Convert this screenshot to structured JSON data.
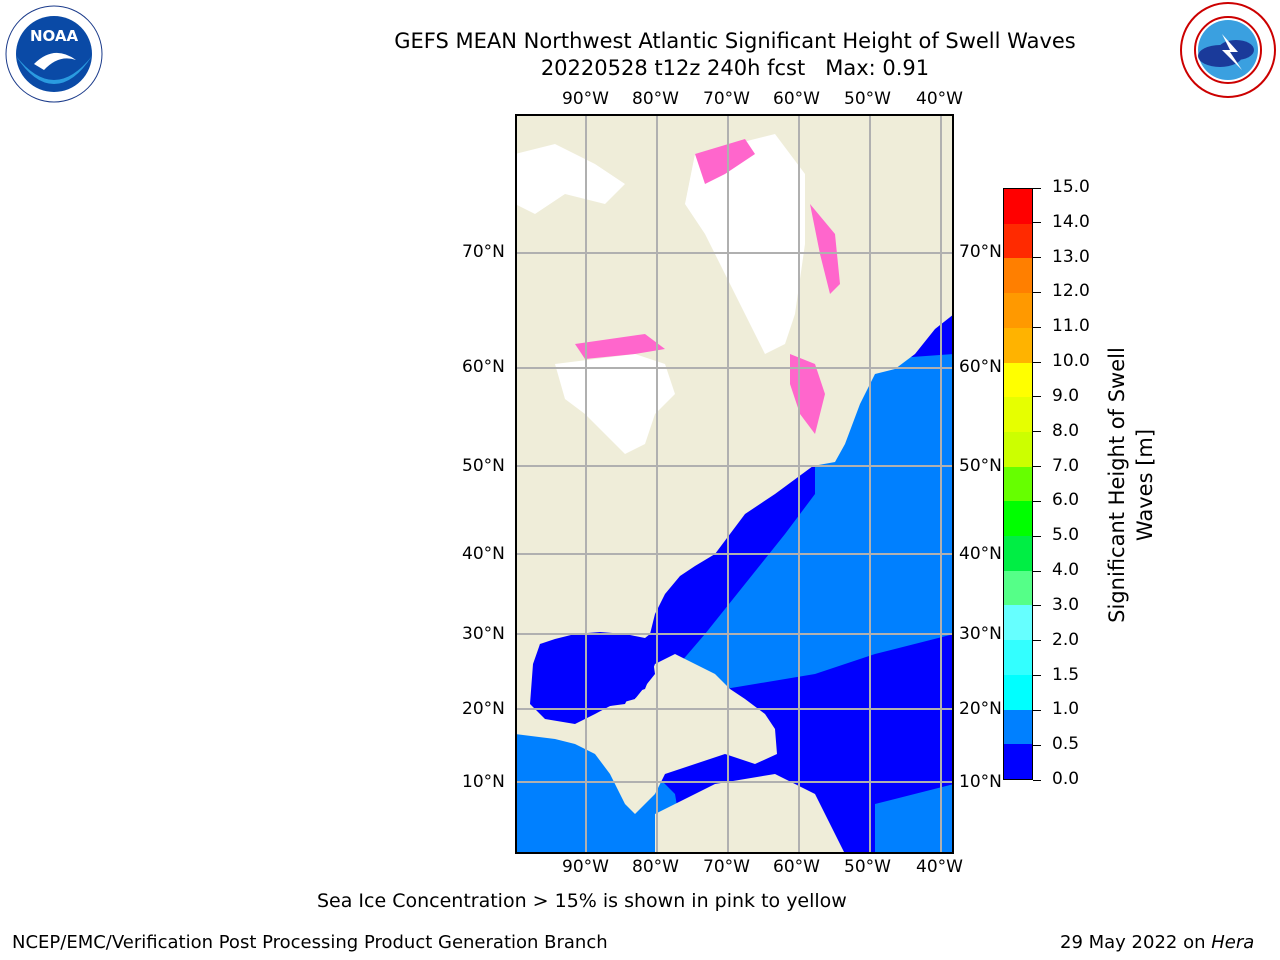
{
  "header": {
    "title_line1": "GEFS MEAN Northwest Atlantic Significant Height of Swell Waves",
    "title_line2": "20220528 t12z 240h fcst   Max: 0.91"
  },
  "logos": {
    "left_text": "NOAA",
    "left_ring_text": "NATIONAL OCEANIC AND ATMOSPHERIC ADMINISTRATION · U.S. DEPARTMENT OF COMMERCE",
    "right_ring_text": "NATIONAL WEATHER SERVICE"
  },
  "map": {
    "lon_labels": [
      "90°W",
      "80°W",
      "70°W",
      "60°W",
      "50°W",
      "40°W"
    ],
    "lat_labels": [
      "70°N",
      "60°N",
      "50°N",
      "40°N",
      "30°N",
      "20°N",
      "10°N"
    ],
    "colors": {
      "land": "#efedd9",
      "ice_region": "#ffffff",
      "swell_0_0_5": "#0000ff",
      "swell_0_5_1_0": "#0080ff",
      "ice_pink": "#ff66cc",
      "grid": "#b0b0b0"
    }
  },
  "colorbar": {
    "ticks": [
      "15.0",
      "14.0",
      "13.0",
      "12.0",
      "11.0",
      "10.0",
      "9.0",
      "8.0",
      "7.0",
      "6.0",
      "5.0",
      "4.0",
      "3.0",
      "2.0",
      "1.5",
      "1.0",
      "0.5",
      "0.0"
    ],
    "colors_top_to_bottom": [
      "#ff0000",
      "#ff2a00",
      "#ff5500",
      "#ff7f00",
      "#ff9900",
      "#ffb300",
      "#ffe600",
      "#ffff00",
      "#e6ff00",
      "#ccff00",
      "#99ff00",
      "#66ff00",
      "#00ff00",
      "#00ee44",
      "#55ff88",
      "#99ffee",
      "#66ffff",
      "#33ffff",
      "#00ffff",
      "#00e5ff",
      "#0080ff",
      "#0000ff"
    ],
    "label_line1": "Significant Height of Swell",
    "label_line2": "Waves [m]"
  },
  "footer": {
    "note": "Sea Ice Concentration > 15% is shown in pink to yellow",
    "credit": "NCEP/EMC/Verification Post Processing Product Generation Branch",
    "date": "29 May 2022 on ",
    "machine": "Hera"
  }
}
